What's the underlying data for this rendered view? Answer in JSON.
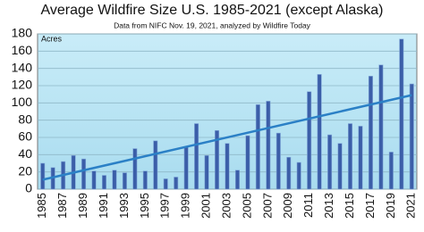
{
  "chart_data": {
    "type": "bar",
    "title": "Average Wildfire Size U.S. 1985-2021 (except Alaska)",
    "subtitle": "Data from NIFC Nov. 19, 2021, analyzed by Wildfire Today",
    "y_label": "Acres",
    "categories": [
      "1985",
      null,
      "1987",
      null,
      "1989",
      null,
      "1991",
      null,
      "1993",
      null,
      "1995",
      null,
      "1997",
      null,
      "1999",
      null,
      "2001",
      null,
      "2003",
      null,
      "2005",
      null,
      "2007",
      null,
      "2009",
      null,
      "2011",
      null,
      "2013",
      null,
      "2015",
      null,
      "2017",
      null,
      "2019",
      null,
      "2021"
    ],
    "values": [
      30,
      25,
      32,
      39,
      35,
      21,
      16,
      22,
      19,
      47,
      21,
      56,
      12,
      14,
      49,
      76,
      39,
      68,
      53,
      22,
      62,
      98,
      102,
      65,
      37,
      31,
      113,
      133,
      63,
      53,
      76,
      73,
      131,
      144,
      43,
      174,
      122
    ],
    "color": "#3b5ea8",
    "trendline": {
      "start": 11,
      "end": 109,
      "color": "#2b80c6"
    },
    "ylim": [
      0,
      180
    ],
    "yticks": [
      0,
      20,
      40,
      60,
      80,
      100,
      120,
      140,
      160,
      180
    ],
    "grid": true
  }
}
